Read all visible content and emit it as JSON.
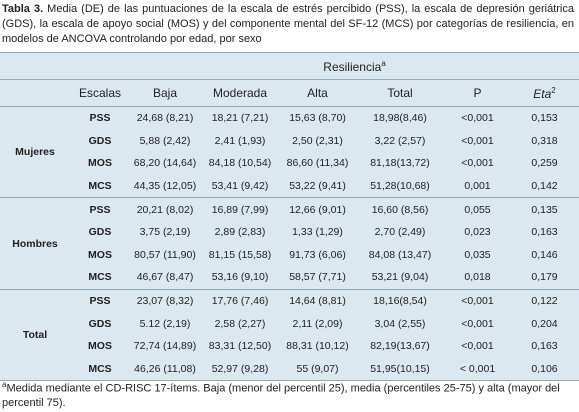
{
  "caption": {
    "label": "Tabla 3.",
    "text": "Media (DE) de las puntuaciones de la escala de estrés percibido (PSS), la escala de depresión geriátrica (GDS), la escala de apoyo social (MOS) y del componente mental del SF-12 (MCS) por categorías de resiliencia, en modelos de ANCOVA controlando por edad, por sexo"
  },
  "table": {
    "group_header": "Resiliencia",
    "group_header_sup": "a",
    "columns": [
      "Escalas",
      "Baja",
      "Moderada",
      "Alta",
      "Total",
      "P",
      "Eta"
    ],
    "eta_sup": "2",
    "groups": [
      {
        "name": "Mujeres",
        "rows": [
          [
            "PSS",
            "24,68 (8,21)",
            "18,21 (7,21)",
            "15,63 (8,70)",
            "18,98(8,46)",
            "<0,001",
            "0,153"
          ],
          [
            "GDS",
            "5,88 (2,42)",
            "2,41 (1,93)",
            "2,50 (2,31)",
            "3,22 (2,57)",
            "<0,001",
            "0,318"
          ],
          [
            "MOS",
            "68,20 (14,64)",
            "84,18 (10,54)",
            "86,60 (11,34)",
            "81,18(13,72)",
            "<0,001",
            "0,259"
          ],
          [
            "MCS",
            "44,35 (12,05)",
            "53,41 (9,42)",
            "53,22 (9,41)",
            "51,28(10,68)",
            "0,001",
            "0,142"
          ]
        ]
      },
      {
        "name": "Hombres",
        "rows": [
          [
            "PSS",
            "20,21 (8,02)",
            "16,89 (7,99)",
            "12,66 (9,01)",
            "16,60 (8,56)",
            "0,055",
            "0,135"
          ],
          [
            "GDS",
            "3,75 (2,19)",
            "2,89 (2,83)",
            "1,33 (1,29)",
            "2,70 (2,49)",
            "0,023",
            "0,163"
          ],
          [
            "MOS",
            "80,57 (11,90)",
            "81,15 (15,58)",
            "91,73 (6,06)",
            "84,08 (13,47)",
            "0,035",
            "0,146"
          ],
          [
            "MCS",
            "46,67 (8,47)",
            "53,16 (9,10)",
            "58,57 (7,71)",
            "53,21 (9,04)",
            "0,018",
            "0,179"
          ]
        ]
      },
      {
        "name": "Total",
        "rows": [
          [
            "PSS",
            "23,07 (8,32)",
            "17,76 (7,46)",
            "14,64 (8,81)",
            "18,16(8,54)",
            "<0,001",
            "0,122"
          ],
          [
            "GDS",
            "5.12 (2,19)",
            "2,58 (2,27)",
            "2,11 (2,09)",
            "3,04 (2,55)",
            "<0,001",
            "0,204"
          ],
          [
            "MOS",
            "72,74 (14,89)",
            "83,31 (12,50)",
            "88,31 (10,12)",
            "82,19(13,67)",
            "<0,001",
            "0,163"
          ],
          [
            "MCS",
            "46,26 (11,08)",
            "52,97 (9,28)",
            "55 (9,07)",
            "51,95(10,15)",
            "< 0,001",
            "0,106"
          ]
        ]
      }
    ]
  },
  "footnote": {
    "sup": "a",
    "text": "Medida mediante el CD-RISC 17-ítems. Baja (menor del percentil 25), media (percentiles 25-75) y alta (mayor del percentil 75)."
  }
}
